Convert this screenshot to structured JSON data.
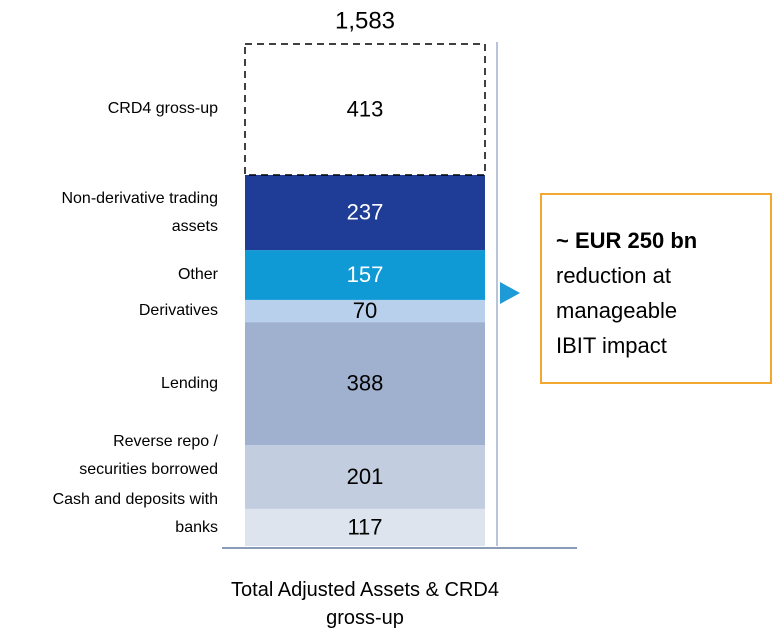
{
  "chart_data": {
    "type": "stacked_bar",
    "categories": [
      "Total Adjusted Assets & CRD4 gross-up"
    ],
    "series": [
      {
        "name": "Cash and deposits with banks",
        "color": "#dde4ee",
        "values": [
          117
        ]
      },
      {
        "name": "Reverse repo / securities borrowed",
        "color": "#c3cde0",
        "values": [
          201
        ]
      },
      {
        "name": "Lending",
        "color": "#9fb1cf",
        "values": [
          388
        ]
      },
      {
        "name": "Derivatives",
        "color": "#b8d0ec",
        "values": [
          70
        ]
      },
      {
        "name": "Other",
        "color": "#0f9ad6",
        "values": [
          157
        ]
      },
      {
        "name": "Non-derivative trading assets",
        "color": "#1f3d96",
        "values": [
          237
        ]
      },
      {
        "name": "CRD4 gross-up",
        "color": "#ffffff",
        "values": [
          413
        ]
      }
    ],
    "total": {
      "value": 1583,
      "label": "1,583"
    },
    "callout": {
      "headline": "~ EUR 250 bn",
      "lines": [
        "reduction at",
        "manageable",
        "IBIT impact"
      ]
    }
  }
}
